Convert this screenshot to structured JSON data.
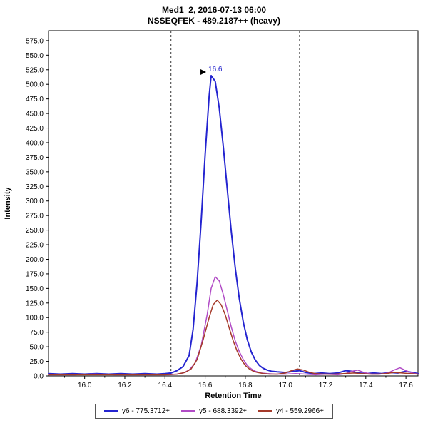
{
  "chart_data": {
    "type": "line",
    "title": "Med1_2, 2016-07-13 06:00",
    "subtitle": "NSSEQFEK - 489.2187++ (heavy)",
    "xlabel": "Retention Time",
    "ylabel": "Intensity",
    "xlim": [
      15.82,
      17.66
    ],
    "ylim": [
      0,
      592
    ],
    "x_ticks": [
      16.0,
      16.2,
      16.4,
      16.6,
      16.8,
      17.0,
      17.2,
      17.4,
      17.6
    ],
    "y_ticks": [
      0,
      25,
      50,
      75,
      100,
      125,
      150,
      175,
      200,
      225,
      250,
      275,
      300,
      325,
      350,
      375,
      400,
      425,
      450,
      475,
      500,
      525,
      550,
      575
    ],
    "grid": false,
    "legend_position": "bottom",
    "boundaries": [
      16.43,
      17.07
    ],
    "boundary_color": "#333333",
    "peak_annotation": {
      "text": "16.6",
      "x": 16.63,
      "y": 515,
      "color": "#2323cc"
    },
    "series": [
      {
        "name": "y6 - 775.3712+",
        "color": "#2424d0",
        "width": 2,
        "points": [
          [
            15.82,
            4
          ],
          [
            15.88,
            3
          ],
          [
            15.94,
            4
          ],
          [
            16.0,
            3
          ],
          [
            16.06,
            4
          ],
          [
            16.12,
            3
          ],
          [
            16.18,
            4
          ],
          [
            16.24,
            3
          ],
          [
            16.3,
            4
          ],
          [
            16.36,
            3
          ],
          [
            16.4,
            4
          ],
          [
            16.43,
            5
          ],
          [
            16.46,
            9
          ],
          [
            16.49,
            16
          ],
          [
            16.52,
            35
          ],
          [
            16.54,
            80
          ],
          [
            16.56,
            160
          ],
          [
            16.58,
            265
          ],
          [
            16.6,
            380
          ],
          [
            16.62,
            480
          ],
          [
            16.63,
            515
          ],
          [
            16.65,
            505
          ],
          [
            16.67,
            460
          ],
          [
            16.69,
            395
          ],
          [
            16.71,
            320
          ],
          [
            16.73,
            248
          ],
          [
            16.75,
            185
          ],
          [
            16.77,
            133
          ],
          [
            16.79,
            92
          ],
          [
            16.81,
            62
          ],
          [
            16.83,
            41
          ],
          [
            16.85,
            27
          ],
          [
            16.87,
            18
          ],
          [
            16.89,
            13
          ],
          [
            16.91,
            10
          ],
          [
            16.93,
            8
          ],
          [
            16.96,
            7
          ],
          [
            17.0,
            6
          ],
          [
            17.04,
            8
          ],
          [
            17.07,
            9
          ],
          [
            17.1,
            6
          ],
          [
            17.14,
            4
          ],
          [
            17.18,
            5
          ],
          [
            17.22,
            4
          ],
          [
            17.26,
            5
          ],
          [
            17.3,
            9
          ],
          [
            17.33,
            8
          ],
          [
            17.36,
            5
          ],
          [
            17.4,
            4
          ],
          [
            17.44,
            5
          ],
          [
            17.48,
            4
          ],
          [
            17.52,
            6
          ],
          [
            17.56,
            5
          ],
          [
            17.6,
            8
          ],
          [
            17.63,
            6
          ],
          [
            17.66,
            4
          ]
        ]
      },
      {
        "name": "y5 - 688.3392+",
        "color": "#b14cc6",
        "width": 1.5,
        "points": [
          [
            15.82,
            2
          ],
          [
            15.95,
            2
          ],
          [
            16.05,
            3
          ],
          [
            16.15,
            2
          ],
          [
            16.25,
            2
          ],
          [
            16.35,
            2
          ],
          [
            16.42,
            2
          ],
          [
            16.46,
            3
          ],
          [
            16.49,
            5
          ],
          [
            16.52,
            10
          ],
          [
            16.55,
            22
          ],
          [
            16.58,
            52
          ],
          [
            16.61,
            105
          ],
          [
            16.63,
            150
          ],
          [
            16.65,
            170
          ],
          [
            16.67,
            163
          ],
          [
            16.69,
            140
          ],
          [
            16.71,
            112
          ],
          [
            16.73,
            84
          ],
          [
            16.75,
            60
          ],
          [
            16.77,
            42
          ],
          [
            16.79,
            28
          ],
          [
            16.81,
            18
          ],
          [
            16.83,
            12
          ],
          [
            16.85,
            8
          ],
          [
            16.88,
            5
          ],
          [
            16.91,
            4
          ],
          [
            16.95,
            3
          ],
          [
            17.0,
            3
          ],
          [
            17.05,
            4
          ],
          [
            17.1,
            3
          ],
          [
            17.15,
            2
          ],
          [
            17.2,
            3
          ],
          [
            17.26,
            2
          ],
          [
            17.3,
            4
          ],
          [
            17.33,
            8
          ],
          [
            17.36,
            10
          ],
          [
            17.39,
            6
          ],
          [
            17.43,
            3
          ],
          [
            17.47,
            3
          ],
          [
            17.51,
            5
          ],
          [
            17.54,
            10
          ],
          [
            17.57,
            14
          ],
          [
            17.6,
            9
          ],
          [
            17.63,
            5
          ],
          [
            17.66,
            3
          ]
        ]
      },
      {
        "name": "y4 - 559.2966+",
        "color": "#a53a2a",
        "width": 1.5,
        "points": [
          [
            15.82,
            2
          ],
          [
            16.0,
            2
          ],
          [
            16.2,
            2
          ],
          [
            16.4,
            2
          ],
          [
            16.46,
            3
          ],
          [
            16.5,
            6
          ],
          [
            16.53,
            12
          ],
          [
            16.56,
            28
          ],
          [
            16.59,
            62
          ],
          [
            16.62,
            100
          ],
          [
            16.64,
            122
          ],
          [
            16.66,
            130
          ],
          [
            16.68,
            122
          ],
          [
            16.7,
            105
          ],
          [
            16.72,
            82
          ],
          [
            16.74,
            60
          ],
          [
            16.76,
            42
          ],
          [
            16.78,
            28
          ],
          [
            16.8,
            18
          ],
          [
            16.82,
            12
          ],
          [
            16.84,
            8
          ],
          [
            16.86,
            6
          ],
          [
            16.89,
            4
          ],
          [
            16.92,
            3
          ],
          [
            16.96,
            3
          ],
          [
            17.0,
            5
          ],
          [
            17.03,
            9
          ],
          [
            17.06,
            12
          ],
          [
            17.09,
            10
          ],
          [
            17.12,
            6
          ],
          [
            17.15,
            4
          ],
          [
            17.19,
            3
          ],
          [
            17.24,
            3
          ],
          [
            17.29,
            4
          ],
          [
            17.34,
            5
          ],
          [
            17.38,
            4
          ],
          [
            17.42,
            3
          ],
          [
            17.46,
            3
          ],
          [
            17.5,
            4
          ],
          [
            17.54,
            6
          ],
          [
            17.58,
            5
          ],
          [
            17.62,
            4
          ],
          [
            17.66,
            3
          ]
        ]
      }
    ]
  }
}
